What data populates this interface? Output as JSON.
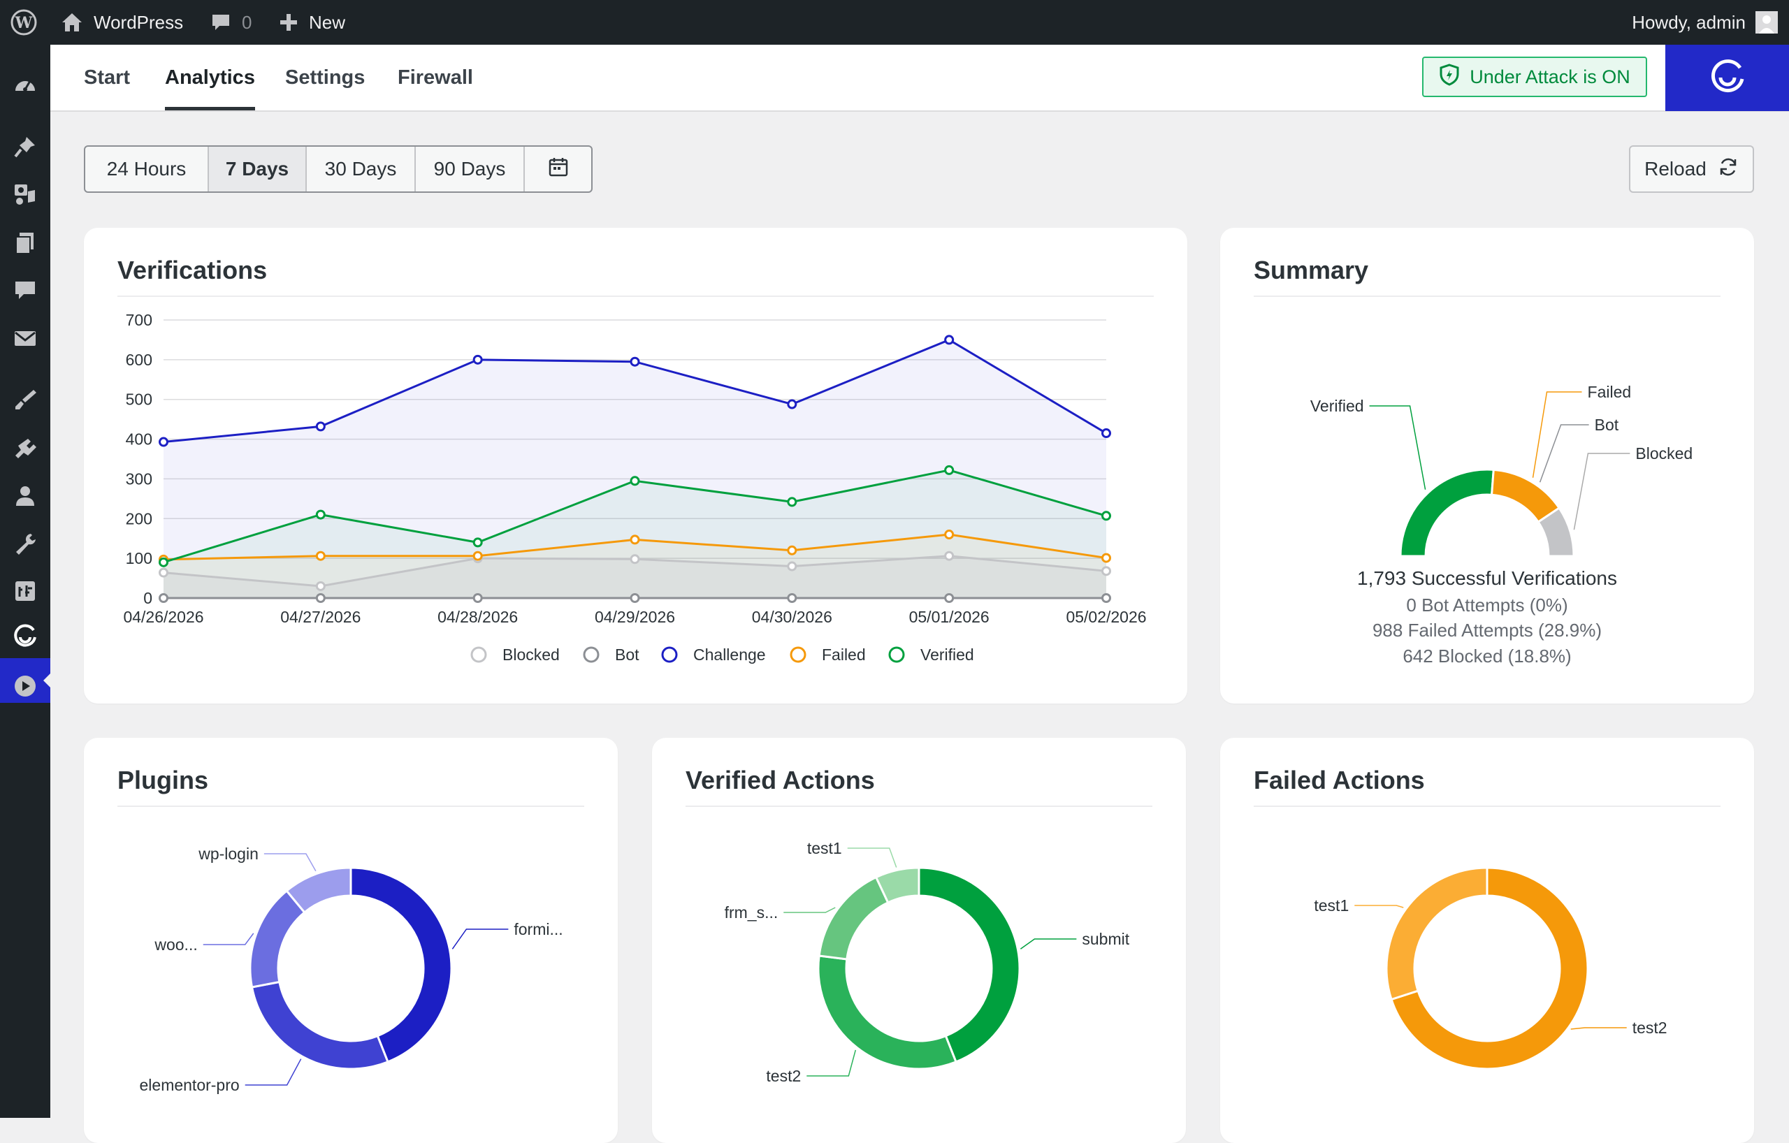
{
  "admin_bar": {
    "site_name": "WordPress",
    "comments_count": "0",
    "new_label": "New",
    "howdy": "Howdy, admin"
  },
  "sidebar": {
    "items": [
      "wp-logo-icon",
      "dashboard-icon",
      "pin-icon",
      "media-icon",
      "pages-icon",
      "comments-icon",
      "mail-icon",
      "appearance-icon",
      "plugins-icon",
      "users-icon",
      "tools-icon",
      "settings-icon",
      "captcha-icon",
      "play-icon"
    ],
    "active": "captcha-icon"
  },
  "tabs": [
    {
      "label": "Start",
      "active": false
    },
    {
      "label": "Analytics",
      "active": true
    },
    {
      "label": "Settings",
      "active": false
    },
    {
      "label": "Firewall",
      "active": false
    }
  ],
  "under_attack_label": "Under Attack is ON",
  "range_buttons": [
    {
      "label": "24 Hours",
      "active": false
    },
    {
      "label": "7 Days",
      "active": true
    },
    {
      "label": "30 Days",
      "active": false
    },
    {
      "label": "90 Days",
      "active": false
    }
  ],
  "reload_label": "Reload",
  "colors": {
    "challenge": "#1c1fc4",
    "verified": "#00a03e",
    "failed": "#f5990a",
    "bot": "#8c8f94",
    "blocked": "#c3c4c7",
    "accent": "#2229c8"
  },
  "verifications": {
    "title": "Verifications",
    "chart_data": {
      "type": "line",
      "categories": [
        "04/26/2026",
        "04/27/2026",
        "04/28/2026",
        "04/29/2026",
        "04/30/2026",
        "05/01/2026",
        "05/02/2026"
      ],
      "ylim": [
        0,
        700
      ],
      "yticks": [
        0,
        100,
        200,
        300,
        400,
        500,
        600,
        700
      ],
      "series": [
        {
          "name": "Blocked",
          "key": "blocked",
          "values": [
            64,
            30,
            100,
            98,
            80,
            106,
            68
          ]
        },
        {
          "name": "Bot",
          "key": "bot",
          "values": [
            0,
            0,
            0,
            0,
            0,
            0,
            0
          ]
        },
        {
          "name": "Challenge",
          "key": "challenge",
          "values": [
            393,
            432,
            600,
            595,
            488,
            650,
            415
          ]
        },
        {
          "name": "Failed",
          "key": "failed",
          "values": [
            97,
            106,
            106,
            147,
            120,
            160,
            101
          ]
        },
        {
          "name": "Verified",
          "key": "verified",
          "values": [
            90,
            210,
            140,
            295,
            242,
            322,
            207
          ]
        }
      ]
    }
  },
  "summary": {
    "title": "Summary",
    "chart_data": {
      "type": "pie",
      "labels": [
        "Verified",
        "Failed",
        "Bot",
        "Blocked"
      ],
      "values": [
        1793,
        988,
        0,
        642
      ]
    },
    "lines": [
      "1,793 Successful Verifications",
      "0 Bot Attempts (0%)",
      "988 Failed Attempts (28.9%)",
      "642 Blocked (18.8%)"
    ]
  },
  "plugins": {
    "title": "Plugins",
    "chart_data": {
      "type": "pie",
      "labels": [
        "formi...",
        "elementor-pro",
        "woo...",
        "wp-login"
      ],
      "values": [
        44,
        28,
        17,
        11
      ]
    }
  },
  "verified_actions": {
    "title": "Verified Actions",
    "chart_data": {
      "type": "pie",
      "labels": [
        "submit",
        "test2",
        "frm_s...",
        "test1"
      ],
      "values": [
        44,
        33,
        16,
        7
      ]
    }
  },
  "failed_actions": {
    "title": "Failed Actions",
    "chart_data": {
      "type": "pie",
      "labels": [
        "test2",
        "test1"
      ],
      "values": [
        70,
        30
      ]
    }
  }
}
